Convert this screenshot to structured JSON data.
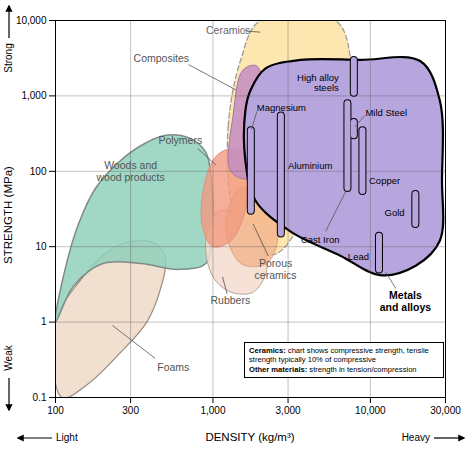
{
  "chart_data": {
    "type": "region",
    "x_label": "DENSITY (kg/m³)",
    "y_label": "STRENGTH (MPa)",
    "x_low_label": "Light",
    "x_high_label": "Heavy",
    "y_low_label": "Weak",
    "y_high_label": "Strong",
    "log": true,
    "grid": true,
    "xlim": [
      100,
      30000
    ],
    "ylim": [
      0.1,
      10000
    ],
    "xticks": [
      100,
      300,
      {
        "value": 1000,
        "label": "1,000"
      },
      {
        "value": 3000,
        "label": "3,000"
      },
      {
        "value": 10000,
        "label": "10,000"
      },
      {
        "value": 30000,
        "label": "30,000"
      }
    ],
    "yticks": [
      0.1,
      1,
      10,
      100,
      {
        "value": 1000,
        "label": "1,000"
      },
      {
        "value": 10000,
        "label": "10,000"
      }
    ],
    "series": [
      {
        "name": "Foams",
        "color": "#efdccb",
        "line_style": "solid",
        "x": [
          100,
          150,
          220,
          320,
          430,
          500,
          470,
          380,
          260,
          160,
          110
        ],
        "y": [
          1,
          4,
          9,
          12,
          11,
          7,
          3,
          1,
          0.4,
          0.15,
          0.1
        ]
      },
      {
        "name": "Woods and wood products",
        "color": "#8fd0bb",
        "line_style": "solid",
        "x": [
          100,
          115,
          140,
          180,
          250,
          350,
          500,
          700,
          900,
          980,
          1000,
          900,
          600,
          350,
          200,
          130
        ],
        "y": [
          1,
          5,
          20,
          60,
          130,
          220,
          300,
          280,
          180,
          70,
          15,
          6,
          5,
          6,
          6,
          3
        ]
      },
      {
        "name": "Ceramics",
        "color": "#fde3a6",
        "line_style": "dashed",
        "x": [
          1300,
          1250,
          1500,
          2000,
          6000,
          7500,
          7000,
          4000,
          2500,
          1600
        ],
        "y": [
          40,
          400,
          3000,
          10000,
          10000,
          3000,
          300,
          30,
          8,
          10
        ]
      },
      {
        "name": "Rubbers",
        "color": "#f3dccf",
        "line_style": "solid",
        "x": [
          900,
          1100,
          1500,
          2000,
          2200,
          1800,
          1300,
          1000
        ],
        "y": [
          12,
          30,
          25,
          12,
          5,
          2.5,
          2.5,
          4
        ]
      },
      {
        "name": "Porous ceramics",
        "color": "#f2b48c",
        "line_style": "solid",
        "x": [
          1200,
          1500,
          2200,
          2600,
          2200,
          1500
        ],
        "y": [
          20,
          60,
          40,
          15,
          6,
          6
        ]
      },
      {
        "name": "Polymers",
        "color": "#f39a80",
        "line_style": "solid",
        "x": [
          850,
          900,
          1050,
          1300,
          1550,
          1650,
          1600,
          1300,
          1000
        ],
        "y": [
          20,
          80,
          160,
          200,
          180,
          100,
          30,
          12,
          10
        ]
      },
      {
        "name": "Composites",
        "color": "#c690c2",
        "line_style": "solid",
        "x": [
          1300,
          1350,
          1550,
          1900,
          2100,
          2000,
          1700
        ],
        "y": [
          100,
          600,
          2200,
          2500,
          1000,
          200,
          80
        ]
      },
      {
        "name": "Metals and alloys",
        "color": "#b7a5de",
        "line_style": "solid",
        "x": [
          1607,
          1730,
          2150,
          3600,
          8600,
          20700,
          27600,
          28500,
          27600,
          19400,
          11500,
          6450,
          3100,
          1860,
          1607
        ],
        "y": [
          640,
          1180,
          2300,
          3000,
          3000,
          2900,
          870,
          76,
          12,
          5.6,
          4.2,
          7.6,
          16,
          41,
          139
        ]
      }
    ],
    "alloys": [
      {
        "name": "High alloy steels",
        "color": "#b7a5de",
        "x": 7850,
        "ymin": 1100,
        "ymax": 3000
      },
      {
        "name": "Mild Steel",
        "color": "#b7a5de",
        "x": 7850,
        "ymin": 300,
        "ymax": 450
      },
      {
        "name": "Magnesium",
        "color": "#b7a5de",
        "x": 1740,
        "ymin": 30,
        "ymax": 350
      },
      {
        "name": "Aluminium",
        "color": "#b7a5de",
        "x": 2700,
        "ymin": 15,
        "ymax": 550
      },
      {
        "name": "Cast Iron",
        "color": "#b7a5de",
        "x": 7150,
        "ymin": 60,
        "ymax": 800
      },
      {
        "name": "Copper",
        "color": "#b7a5de",
        "x": 8900,
        "ymin": 55,
        "ymax": 350
      },
      {
        "name": "Gold",
        "color": "#b7a5de",
        "x": 19300,
        "ymin": 20,
        "ymax": 50
      },
      {
        "name": "Lead",
        "color": "#b7a5de",
        "x": 11340,
        "ymin": 5,
        "ymax": 14
      }
    ],
    "notes": [
      {
        "label": "Ceramics:",
        "text": "chart shows compressive strength, tensile strength typically 10% of compressive"
      },
      {
        "label": "Other materials:",
        "text": "strength in tension/compression"
      }
    ]
  }
}
